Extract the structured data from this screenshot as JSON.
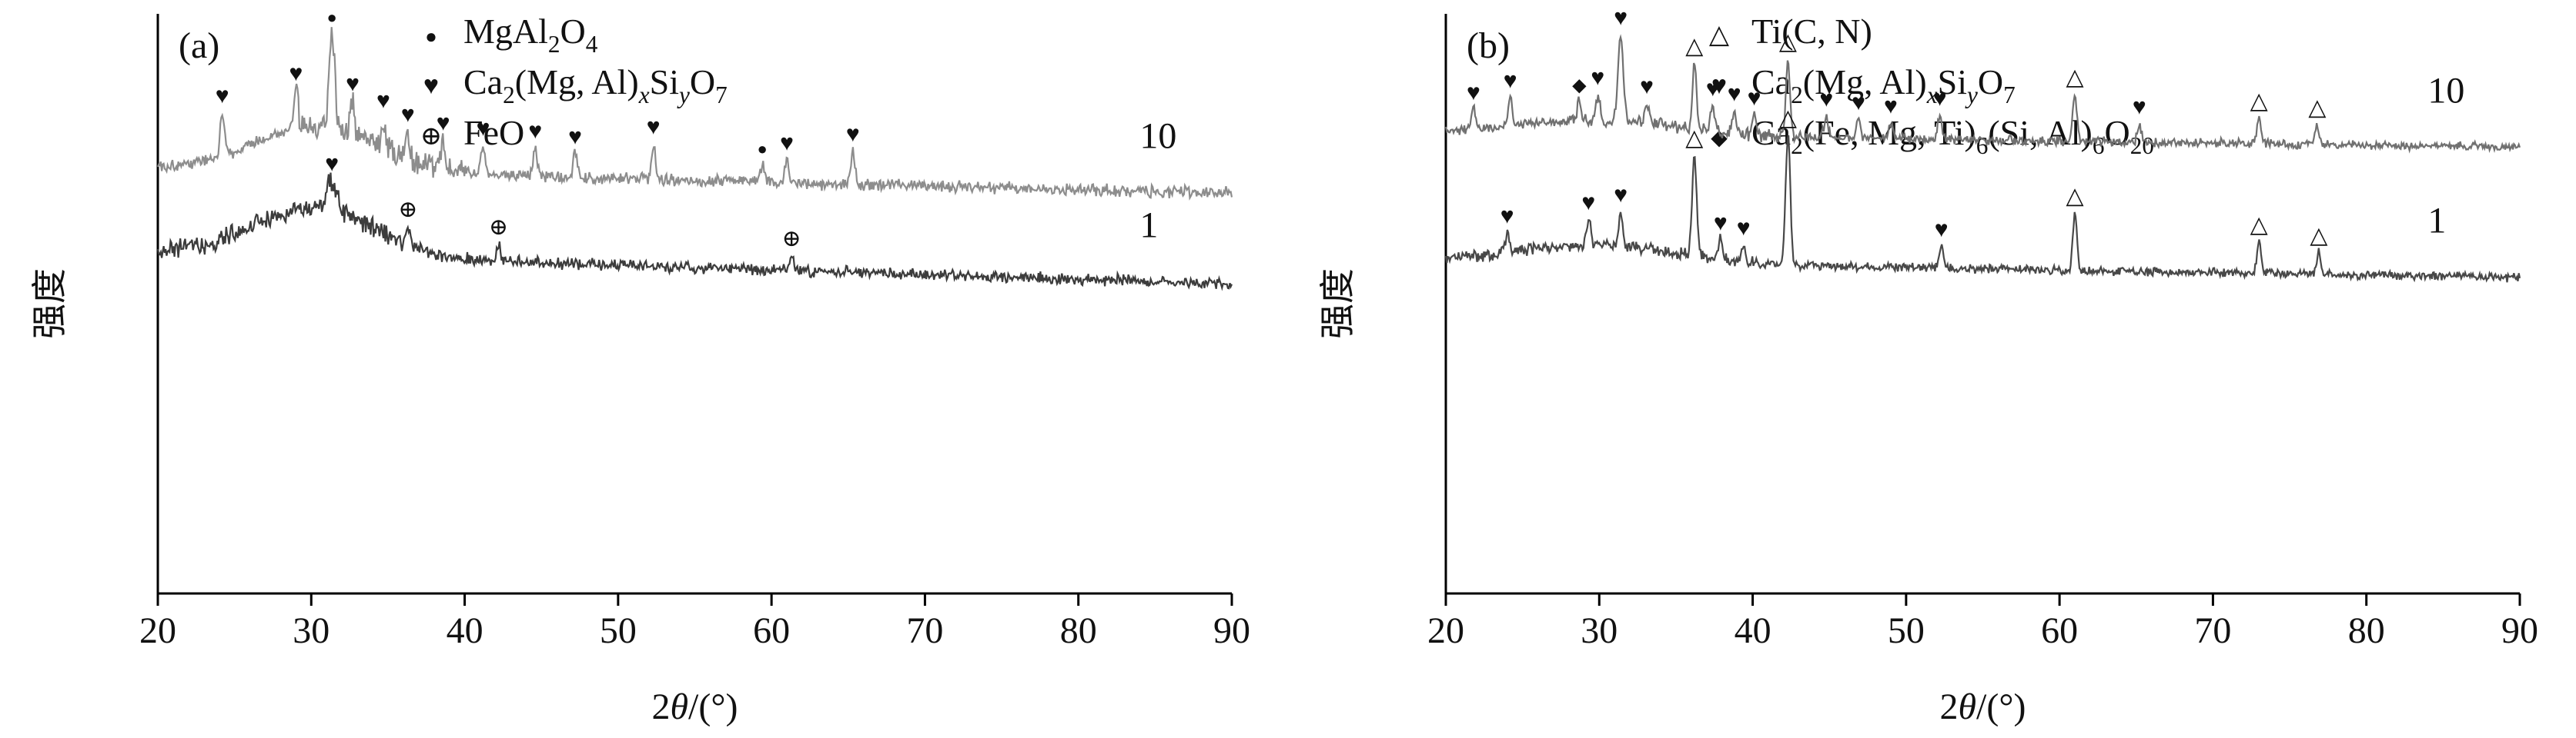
{
  "style": {
    "background": "#ffffff",
    "axis_color": "#000000",
    "text_color": "#111111",
    "marker_color": "#2b2b2b",
    "trace_label_color": "#222222"
  },
  "markers": {
    "filled-circle": {
      "glyph": "●",
      "size": 22
    },
    "filled-heart": {
      "glyph": "♥",
      "size": 30
    },
    "circled-plus": {
      "glyph": "⊕",
      "size": 30
    },
    "open-triangle": {
      "glyph": "△",
      "size": 30
    },
    "filled-diamond": {
      "glyph": "◆",
      "size": 24
    }
  },
  "chart_data": [
    {
      "type": "line",
      "panel_label": "(a)",
      "xlabel": "2θ/(°)",
      "ylabel": "强度",
      "x_range": [
        20,
        90
      ],
      "x_ticks": [
        20,
        30,
        40,
        50,
        60,
        70,
        80,
        90
      ],
      "y_axis": "arbitrary intensity, no ticks",
      "legend": [
        {
          "marker": "filled-circle",
          "glyph": "●",
          "formula": "MgAl_2_O_4_"
        },
        {
          "marker": "filled-heart",
          "glyph": "♥",
          "formula": "Ca_2_(Mg, Al)_x_Si_y_O_7_"
        },
        {
          "marker": "circled-plus",
          "glyph": "⊕",
          "formula": "FeO"
        }
      ],
      "series": [
        {
          "name": "10",
          "color": "#8d8d8d",
          "seed": 101,
          "baseline": {
            "left": 0.735,
            "right": 0.69
          },
          "hump": {
            "center": 30.5,
            "width": 4.0,
            "height": 0.08
          },
          "noise": 0.013,
          "noisy_band": {
            "from": 29,
            "to": 40,
            "mult": 2.2
          },
          "label_x": 84.0,
          "peaks": [
            {
              "x": 24.2,
              "h": 0.075,
              "m": "filled-heart"
            },
            {
              "x": 29.0,
              "h": 0.065,
              "m": "filled-heart"
            },
            {
              "x": 31.35,
              "h": 0.17,
              "sigma": 0.18,
              "m": "filled-circle"
            },
            {
              "x": 32.7,
              "h": 0.055,
              "m": "filled-heart"
            },
            {
              "x": 34.7,
              "h": 0.05,
              "m": "filled-heart"
            },
            {
              "x": 36.3,
              "h": 0.045,
              "m": "filled-heart"
            },
            {
              "x": 38.6,
              "h": 0.05,
              "m": "filled-heart"
            },
            {
              "x": 41.2,
              "h": 0.05,
              "m": "filled-heart"
            },
            {
              "x": 44.6,
              "h": 0.05,
              "m": "filled-heart"
            },
            {
              "x": 47.2,
              "h": 0.042,
              "m": "filled-heart"
            },
            {
              "x": 52.3,
              "h": 0.062,
              "m": "filled-heart"
            },
            {
              "x": 59.4,
              "h": 0.032,
              "m": "filled-circle"
            },
            {
              "x": 61.0,
              "h": 0.04,
              "m": "filled-heart"
            },
            {
              "x": 65.3,
              "h": 0.058,
              "m": "filled-heart"
            }
          ]
        },
        {
          "name": "1",
          "color": "#3c3c3c",
          "seed": 202,
          "baseline": {
            "left": 0.59,
            "right": 0.535
          },
          "hump": {
            "center": 30.3,
            "width": 3.8,
            "height": 0.085
          },
          "noise": 0.012,
          "noisy_band": {
            "from": 20,
            "to": 36,
            "mult": 1.8
          },
          "label_x": 84.0,
          "peaks": [
            {
              "x": 31.35,
              "h": 0.05,
              "sigma": 0.3,
              "m": "filled-heart"
            },
            {
              "x": 36.3,
              "h": 0.032,
              "m": "circled-plus"
            },
            {
              "x": 42.2,
              "h": 0.03,
              "m": "circled-plus"
            },
            {
              "x": 61.3,
              "h": 0.026,
              "m": "circled-plus"
            }
          ]
        }
      ]
    },
    {
      "type": "line",
      "panel_label": "(b)",
      "xlabel": "2θ/(°)",
      "ylabel": "强度",
      "x_range": [
        20,
        90
      ],
      "x_ticks": [
        20,
        30,
        40,
        50,
        60,
        70,
        80,
        90
      ],
      "y_axis": "arbitrary intensity, no ticks",
      "legend": [
        {
          "marker": "open-triangle",
          "glyph": "△",
          "formula": "Ti(C, N)"
        },
        {
          "marker": "filled-heart",
          "glyph": "♥",
          "formula": "Ca_2_(Mg, Al)_x_Si_y_O_7_"
        },
        {
          "marker": "filled-diamond",
          "glyph": "◆",
          "formula": "Ca_2_(Fe, Mg, Ti)_6_(Si, Al)_6_O_20_"
        }
      ],
      "series": [
        {
          "name": "10",
          "color": "#707070",
          "seed": 303,
          "baseline": {
            "left": 0.795,
            "right": 0.77
          },
          "hump": {
            "center": 30.0,
            "width": 5.0,
            "height": 0.025
          },
          "noise": 0.009,
          "noisy_band": {
            "from": 28,
            "to": 45,
            "mult": 1.5
          },
          "label_x": 84.0,
          "peaks": [
            {
              "x": 21.8,
              "h": 0.035,
              "m": "filled-heart"
            },
            {
              "x": 24.2,
              "h": 0.05,
              "m": "filled-heart"
            },
            {
              "x": 28.7,
              "h": 0.035,
              "m": "filled-diamond"
            },
            {
              "x": 29.9,
              "h": 0.045,
              "m": "filled-heart"
            },
            {
              "x": 31.4,
              "h": 0.15,
              "sigma": 0.16,
              "m": "filled-heart"
            },
            {
              "x": 33.1,
              "h": 0.035,
              "m": "filled-heart"
            },
            {
              "x": 36.2,
              "h": 0.115,
              "m": "open-triangle"
            },
            {
              "x": 37.4,
              "h": 0.045,
              "m": "filled-heart"
            },
            {
              "x": 38.8,
              "h": 0.04,
              "m": "filled-heart"
            },
            {
              "x": 40.1,
              "h": 0.035,
              "m": "filled-heart"
            },
            {
              "x": 42.3,
              "h": 0.135,
              "m": "open-triangle"
            },
            {
              "x": 44.8,
              "h": 0.038,
              "m": "filled-heart"
            },
            {
              "x": 46.9,
              "h": 0.033,
              "m": "filled-heart"
            },
            {
              "x": 49.0,
              "h": 0.028,
              "m": "filled-heart"
            },
            {
              "x": 52.2,
              "h": 0.042,
              "m": "filled-heart"
            },
            {
              "x": 61.0,
              "h": 0.082,
              "m": "open-triangle"
            },
            {
              "x": 65.2,
              "h": 0.032,
              "m": "filled-heart"
            },
            {
              "x": 73.0,
              "h": 0.045,
              "m": "open-triangle"
            },
            {
              "x": 76.8,
              "h": 0.035,
              "m": "open-triangle"
            }
          ]
        },
        {
          "name": "1",
          "color": "#484848",
          "seed": 404,
          "baseline": {
            "left": 0.575,
            "right": 0.545
          },
          "hump": {
            "center": 30.0,
            "width": 5.0,
            "height": 0.03
          },
          "noise": 0.009,
          "noisy_band": {
            "from": 20,
            "to": 40,
            "mult": 1.4
          },
          "label_x": 84.0,
          "peaks": [
            {
              "x": 24.0,
              "h": 0.035,
              "m": "filled-heart"
            },
            {
              "x": 29.3,
              "h": 0.045,
              "m": "filled-heart"
            },
            {
              "x": 31.4,
              "h": 0.06,
              "m": "filled-heart"
            },
            {
              "x": 36.2,
              "h": 0.175,
              "sigma": 0.15,
              "m": "open-triangle"
            },
            {
              "x": 37.9,
              "h": 0.035,
              "m": "filled-heart"
            },
            {
              "x": 39.4,
              "h": 0.03,
              "m": "filled-heart"
            },
            {
              "x": 42.3,
              "h": 0.225,
              "sigma": 0.15,
              "m": "open-triangle"
            },
            {
              "x": 52.3,
              "h": 0.038,
              "m": "filled-heart"
            },
            {
              "x": 61.0,
              "h": 0.1,
              "m": "open-triangle"
            },
            {
              "x": 73.0,
              "h": 0.055,
              "m": "open-triangle"
            },
            {
              "x": 76.9,
              "h": 0.038,
              "m": "open-triangle"
            }
          ]
        }
      ]
    }
  ]
}
